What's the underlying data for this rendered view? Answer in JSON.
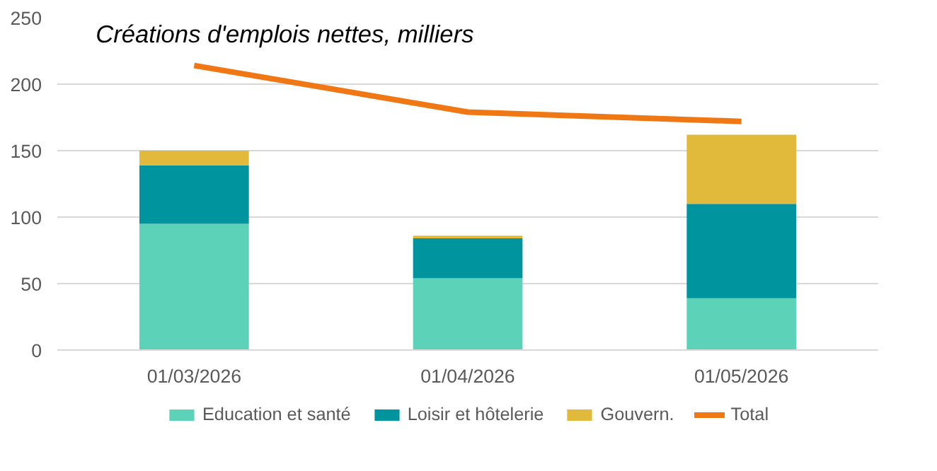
{
  "chart_data": {
    "type": "bar",
    "stacked": true,
    "title": "Créations d'emplois nettes, milliers",
    "categories": [
      "01/03/2026",
      "01/04/2026",
      "01/05/2026"
    ],
    "series": [
      {
        "name": "Education et santé",
        "color": "#5cd3b9",
        "values": [
          95,
          54,
          39
        ]
      },
      {
        "name": "Loisir et hôtelerie",
        "color": "#00959e",
        "values": [
          44,
          30,
          71
        ]
      },
      {
        "name": "Gouvern.",
        "color": "#e1ba3c",
        "values": [
          11,
          2,
          52
        ]
      },
      {
        "name": "Total",
        "type": "line",
        "color": "#f07814",
        "values": [
          214,
          179,
          172
        ]
      }
    ],
    "ylim": [
      0,
      250
    ],
    "yticks": [
      0,
      50,
      100,
      150,
      200,
      250
    ],
    "grid": "y",
    "legend": "bottom"
  }
}
